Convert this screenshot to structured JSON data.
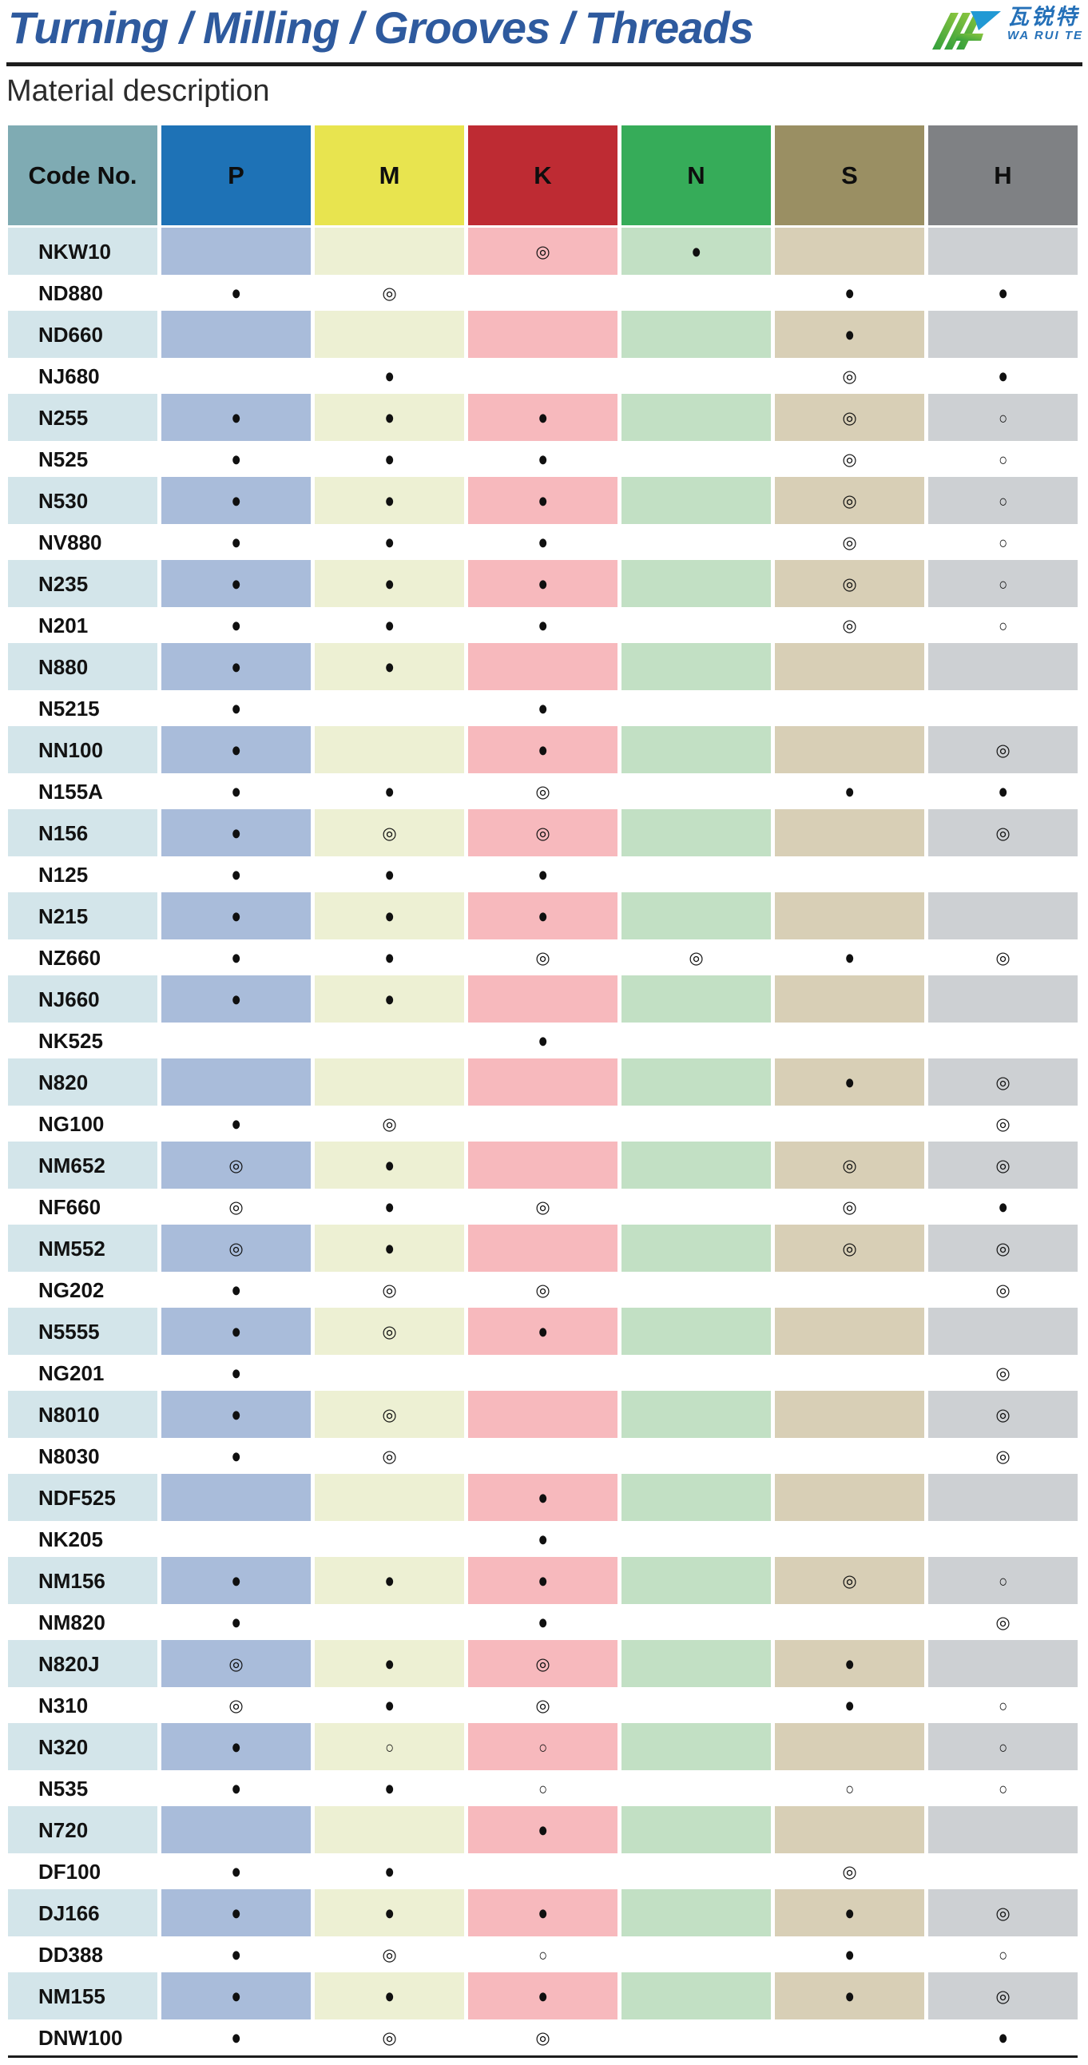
{
  "page": {
    "title": "Turning / Milling / Grooves / Threads",
    "section_title": "Material description"
  },
  "logo": {
    "cn": "瓦锐特",
    "en": "WA RUI TE",
    "mark_colors": {
      "green_light": "#8dc63f",
      "green_dark": "#2f9e3c",
      "blue": "#2199d4"
    },
    "text_color": "#2470b8"
  },
  "colors": {
    "title_blue": "#2e5a9e",
    "rule_black": "#1c1c1c",
    "mark_black": "#101010"
  },
  "table": {
    "mark_legend": {
      "●": "filled-circle",
      "◎": "double-circle",
      "○": "open-circle"
    },
    "columns": [
      {
        "key": "code",
        "label": "Code No.",
        "header_bg": "#7fabb3",
        "shaded_bg": "#d3e5ea"
      },
      {
        "key": "P",
        "label": "P",
        "header_bg": "#1e72b6",
        "shaded_bg": "#a9bcda"
      },
      {
        "key": "M",
        "label": "M",
        "header_bg": "#e8e44f",
        "shaded_bg": "#edf0d3"
      },
      {
        "key": "K",
        "label": "K",
        "header_bg": "#be2b33",
        "shaded_bg": "#f7b9bd"
      },
      {
        "key": "N",
        "label": "N",
        "header_bg": "#36ac59",
        "shaded_bg": "#c2e0c4"
      },
      {
        "key": "S",
        "label": "S",
        "header_bg": "#9a8f63",
        "shaded_bg": "#d8cfb6"
      },
      {
        "key": "H",
        "label": "H",
        "header_bg": "#7f8184",
        "shaded_bg": "#cdd0d3"
      }
    ],
    "mark_keys": [
      "P",
      "M",
      "K",
      "N",
      "S",
      "H"
    ],
    "rows": [
      {
        "code": "NKW10",
        "marks": {
          "P": "",
          "M": "",
          "K": "◎",
          "N": "●",
          "S": "",
          "H": ""
        }
      },
      {
        "code": "ND880",
        "marks": {
          "P": "●",
          "M": "◎",
          "K": "",
          "N": "",
          "S": "●",
          "H": "●"
        }
      },
      {
        "code": "ND660",
        "marks": {
          "P": "",
          "M": "",
          "K": "",
          "N": "",
          "S": "●",
          "H": ""
        }
      },
      {
        "code": "NJ680",
        "marks": {
          "P": "",
          "M": "●",
          "K": "",
          "N": "",
          "S": "◎",
          "H": "●"
        }
      },
      {
        "code": "N255",
        "marks": {
          "P": "●",
          "M": "●",
          "K": "●",
          "N": "",
          "S": "◎",
          "H": "○"
        }
      },
      {
        "code": "N525",
        "marks": {
          "P": "●",
          "M": "●",
          "K": "●",
          "N": "",
          "S": "◎",
          "H": "○"
        }
      },
      {
        "code": "N530",
        "marks": {
          "P": "●",
          "M": "●",
          "K": "●",
          "N": "",
          "S": "◎",
          "H": "○"
        }
      },
      {
        "code": "NV880",
        "marks": {
          "P": "●",
          "M": "●",
          "K": "●",
          "N": "",
          "S": "◎",
          "H": "○"
        }
      },
      {
        "code": "N235",
        "marks": {
          "P": "●",
          "M": "●",
          "K": "●",
          "N": "",
          "S": "◎",
          "H": "○"
        }
      },
      {
        "code": "N201",
        "marks": {
          "P": "●",
          "M": "●",
          "K": "●",
          "N": "",
          "S": "◎",
          "H": "○"
        }
      },
      {
        "code": "N880",
        "marks": {
          "P": "●",
          "M": "●",
          "K": "",
          "N": "",
          "S": "",
          "H": ""
        }
      },
      {
        "code": "N5215",
        "marks": {
          "P": "●",
          "M": "",
          "K": "●",
          "N": "",
          "S": "",
          "H": ""
        }
      },
      {
        "code": "NN100",
        "marks": {
          "P": "●",
          "M": "",
          "K": "●",
          "N": "",
          "S": "",
          "H": "◎"
        }
      },
      {
        "code": "N155A",
        "marks": {
          "P": "●",
          "M": "●",
          "K": "◎",
          "N": "",
          "S": "●",
          "H": "●"
        }
      },
      {
        "code": "N156",
        "marks": {
          "P": "●",
          "M": "◎",
          "K": "◎",
          "N": "",
          "S": "",
          "H": "◎"
        }
      },
      {
        "code": "N125",
        "marks": {
          "P": "●",
          "M": "●",
          "K": "●",
          "N": "",
          "S": "",
          "H": ""
        }
      },
      {
        "code": "N215",
        "marks": {
          "P": "●",
          "M": "●",
          "K": "●",
          "N": "",
          "S": "",
          "H": ""
        }
      },
      {
        "code": "NZ660",
        "marks": {
          "P": "●",
          "M": "●",
          "K": "◎",
          "N": "◎",
          "S": "●",
          "H": "◎"
        }
      },
      {
        "code": "NJ660",
        "marks": {
          "P": "●",
          "M": "●",
          "K": "",
          "N": "",
          "S": "",
          "H": ""
        }
      },
      {
        "code": "NK525",
        "marks": {
          "P": "",
          "M": "",
          "K": "●",
          "N": "",
          "S": "",
          "H": ""
        }
      },
      {
        "code": "N820",
        "marks": {
          "P": "",
          "M": "",
          "K": "",
          "N": "",
          "S": "●",
          "H": "◎"
        }
      },
      {
        "code": "NG100",
        "marks": {
          "P": "●",
          "M": "◎",
          "K": "",
          "N": "",
          "S": "",
          "H": "◎"
        }
      },
      {
        "code": "NM652",
        "marks": {
          "P": "◎",
          "M": "●",
          "K": "",
          "N": "",
          "S": "◎",
          "H": "◎"
        }
      },
      {
        "code": "NF660",
        "marks": {
          "P": "◎",
          "M": "●",
          "K": "◎",
          "N": "",
          "S": "◎",
          "H": "●"
        }
      },
      {
        "code": "NM552",
        "marks": {
          "P": "◎",
          "M": "●",
          "K": "",
          "N": "",
          "S": "◎",
          "H": "◎"
        }
      },
      {
        "code": "NG202",
        "marks": {
          "P": "●",
          "M": "◎",
          "K": "◎",
          "N": "",
          "S": "",
          "H": "◎"
        }
      },
      {
        "code": "N5555",
        "marks": {
          "P": "●",
          "M": "◎",
          "K": "●",
          "N": "",
          "S": "",
          "H": ""
        }
      },
      {
        "code": "NG201",
        "marks": {
          "P": "●",
          "M": "",
          "K": "",
          "N": "",
          "S": "",
          "H": "◎"
        }
      },
      {
        "code": "N8010",
        "marks": {
          "P": "●",
          "M": "◎",
          "K": "",
          "N": "",
          "S": "",
          "H": "◎"
        }
      },
      {
        "code": "N8030",
        "marks": {
          "P": "●",
          "M": "◎",
          "K": "",
          "N": "",
          "S": "",
          "H": "◎"
        }
      },
      {
        "code": "NDF525",
        "marks": {
          "P": "",
          "M": "",
          "K": "●",
          "N": "",
          "S": "",
          "H": ""
        }
      },
      {
        "code": "NK205",
        "marks": {
          "P": "",
          "M": "",
          "K": "●",
          "N": "",
          "S": "",
          "H": ""
        }
      },
      {
        "code": "NM156",
        "marks": {
          "P": "●",
          "M": "●",
          "K": "●",
          "N": "",
          "S": "◎",
          "H": "○"
        }
      },
      {
        "code": "NM820",
        "marks": {
          "P": "●",
          "M": "",
          "K": "●",
          "N": "",
          "S": "",
          "H": "◎"
        }
      },
      {
        "code": "N820J",
        "marks": {
          "P": "◎",
          "M": "●",
          "K": "◎",
          "N": "",
          "S": "●",
          "H": ""
        }
      },
      {
        "code": "N310",
        "marks": {
          "P": "◎",
          "M": "●",
          "K": "◎",
          "N": "",
          "S": "●",
          "H": "○"
        }
      },
      {
        "code": "N320",
        "marks": {
          "P": "●",
          "M": "○",
          "K": "○",
          "N": "",
          "S": "",
          "H": "○"
        }
      },
      {
        "code": "N535",
        "marks": {
          "P": "●",
          "M": "●",
          "K": "○",
          "N": "",
          "S": "○",
          "H": "○"
        }
      },
      {
        "code": "N720",
        "marks": {
          "P": "",
          "M": "",
          "K": "●",
          "N": "",
          "S": "",
          "H": ""
        }
      },
      {
        "code": "DF100",
        "marks": {
          "P": "●",
          "M": "●",
          "K": "",
          "N": "",
          "S": "◎",
          "H": ""
        }
      },
      {
        "code": "DJ166",
        "marks": {
          "P": "●",
          "M": "●",
          "K": "●",
          "N": "",
          "S": "●",
          "H": "◎"
        }
      },
      {
        "code": "DD388",
        "marks": {
          "P": "●",
          "M": "◎",
          "K": "○",
          "N": "",
          "S": "●",
          "H": "○"
        }
      },
      {
        "code": "NM155",
        "marks": {
          "P": "●",
          "M": "●",
          "K": "●",
          "N": "",
          "S": "●",
          "H": "◎"
        }
      },
      {
        "code": "DNW100",
        "marks": {
          "P": "●",
          "M": "◎",
          "K": "◎",
          "N": "",
          "S": "",
          "H": "●"
        }
      }
    ]
  }
}
